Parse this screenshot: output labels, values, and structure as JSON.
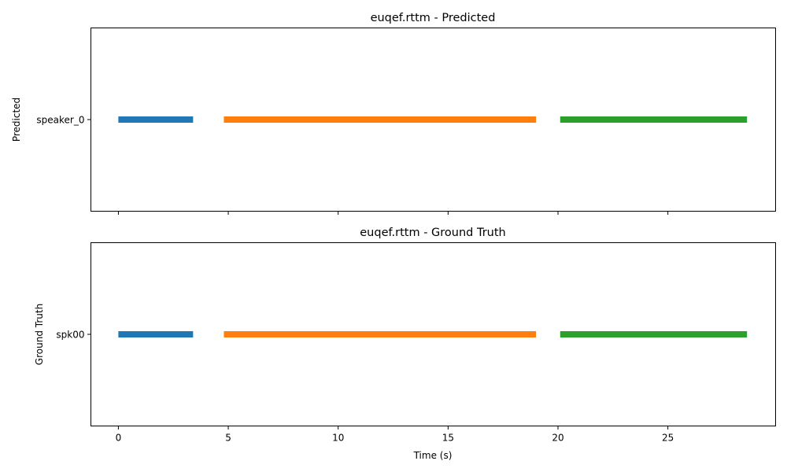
{
  "chart_data": [
    {
      "type": "timeline",
      "title": "euqef.rttm - Predicted",
      "ylabel": "Predicted",
      "xlabel": "",
      "xlim": [
        -1.25,
        29.9
      ],
      "x_ticks": [
        0,
        5,
        10,
        15,
        20,
        25
      ],
      "show_x_tick_labels": false,
      "categories": [
        "speaker_0"
      ],
      "segments": [
        {
          "speaker": "speaker_0",
          "start": 0.0,
          "end": 3.4,
          "color": "#1f77b4"
        },
        {
          "speaker": "speaker_0",
          "start": 4.8,
          "end": 19.0,
          "color": "#ff7f0e"
        },
        {
          "speaker": "speaker_0",
          "start": 20.1,
          "end": 28.6,
          "color": "#2ca02c"
        }
      ],
      "grid": false
    },
    {
      "type": "timeline",
      "title": "euqef.rttm - Ground Truth",
      "ylabel": "Ground Truth",
      "xlabel": "Time (s)",
      "xlim": [
        -1.25,
        29.9
      ],
      "x_ticks": [
        0,
        5,
        10,
        15,
        20,
        25
      ],
      "show_x_tick_labels": true,
      "categories": [
        "spk00"
      ],
      "segments": [
        {
          "speaker": "spk00",
          "start": 0.0,
          "end": 3.4,
          "color": "#1f77b4"
        },
        {
          "speaker": "spk00",
          "start": 4.8,
          "end": 19.0,
          "color": "#ff7f0e"
        },
        {
          "speaker": "spk00",
          "start": 20.1,
          "end": 28.6,
          "color": "#2ca02c"
        }
      ],
      "grid": false
    }
  ]
}
